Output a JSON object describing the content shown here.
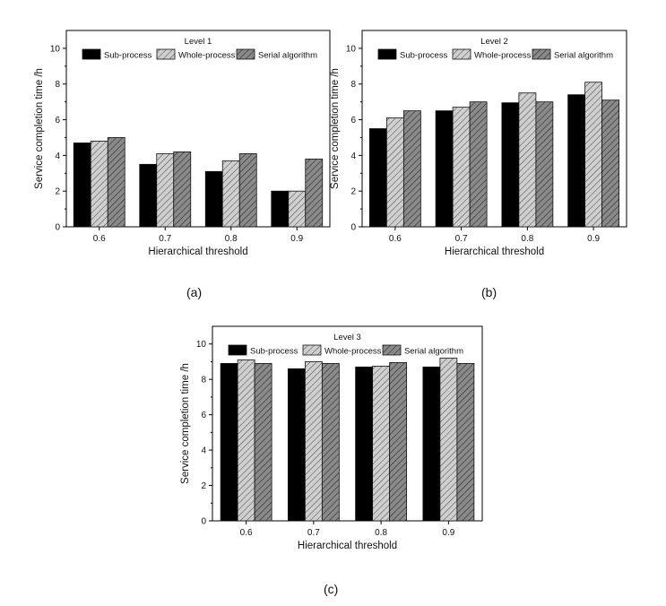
{
  "captions": [
    "(a)",
    "(b)",
    "(c)"
  ],
  "colors": {
    "sub_process": "#000000",
    "whole_process": "#c8c8c8",
    "serial_algorithm": "#7a7a7a",
    "hatch": "#333333"
  },
  "chart_data": [
    {
      "type": "bar",
      "title": "Level 1",
      "xlabel": "Hierarchical threshold",
      "ylabel": "Service completion time /h",
      "categories": [
        "0.6",
        "0.7",
        "0.8",
        "0.9"
      ],
      "ylim": [
        0,
        11
      ],
      "yticks": [
        0,
        2,
        4,
        6,
        8,
        10
      ],
      "legend_position": "top",
      "grid": false,
      "series": [
        {
          "name": "Sub-process",
          "values": [
            4.7,
            3.5,
            3.1,
            2.0
          ]
        },
        {
          "name": "Whole-process",
          "values": [
            4.8,
            4.1,
            3.7,
            2.0
          ]
        },
        {
          "name": "Serial algorithm",
          "values": [
            5.0,
            4.2,
            4.1,
            3.8
          ]
        }
      ]
    },
    {
      "type": "bar",
      "title": "Level 2",
      "xlabel": "Hierarchical threshold",
      "ylabel": "Service completion time /h",
      "categories": [
        "0.6",
        "0.7",
        "0.8",
        "0.9"
      ],
      "ylim": [
        0,
        11
      ],
      "yticks": [
        0,
        2,
        4,
        6,
        8,
        10
      ],
      "legend_position": "top",
      "grid": false,
      "series": [
        {
          "name": "Sub-process",
          "values": [
            5.5,
            6.5,
            6.95,
            7.4
          ]
        },
        {
          "name": "Whole-process",
          "values": [
            6.1,
            6.7,
            7.5,
            8.1
          ]
        },
        {
          "name": "Serial algorithm",
          "values": [
            6.5,
            7.0,
            7.0,
            7.1
          ]
        }
      ]
    },
    {
      "type": "bar",
      "title": "Level 3",
      "xlabel": "Hierarchical threshold",
      "ylabel": "Service completion time /h",
      "categories": [
        "0.6",
        "0.7",
        "0.8",
        "0.9"
      ],
      "ylim": [
        0,
        11
      ],
      "yticks": [
        0,
        2,
        4,
        6,
        8,
        10
      ],
      "legend_position": "top",
      "grid": false,
      "series": [
        {
          "name": "Sub-process",
          "values": [
            8.9,
            8.6,
            8.7,
            8.7
          ]
        },
        {
          "name": "Whole-process",
          "values": [
            9.1,
            9.0,
            8.75,
            9.2
          ]
        },
        {
          "name": "Serial algorithm",
          "values": [
            8.9,
            8.9,
            8.95,
            8.9
          ]
        }
      ]
    }
  ]
}
